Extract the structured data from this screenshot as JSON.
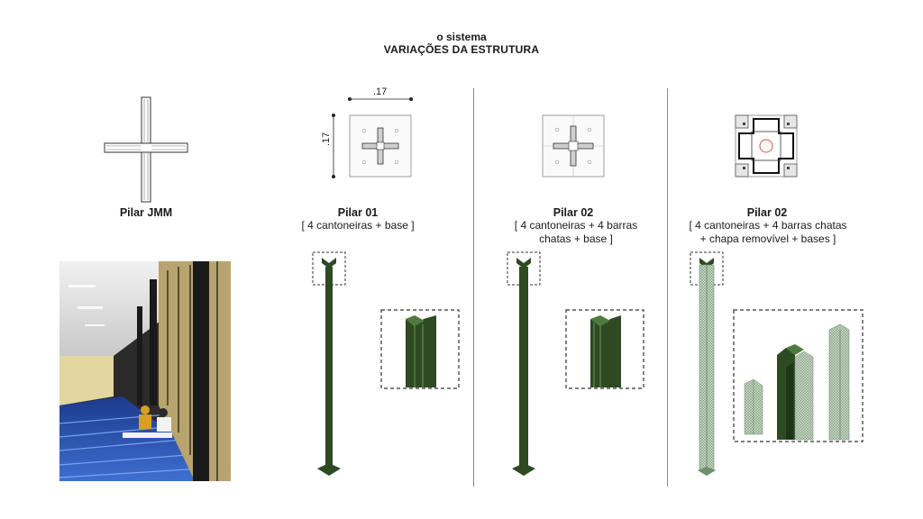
{
  "header": {
    "subtitle": "o sistema",
    "title": "VARIAÇÕES DA ESTRUTURA"
  },
  "columns": [
    {
      "name": "Pilar JMM",
      "description": ""
    },
    {
      "name": "Pilar 01",
      "description": "[ 4 cantoneiras + base ]"
    },
    {
      "name": "Pilar 02",
      "description_lines": [
        "[ 4 cantoneiras +  4 barras",
        "chatas + base ]"
      ]
    },
    {
      "name": "Pilar 02",
      "description_lines": [
        "[ 4 cantoneiras +  4 barras chatas",
        "+ chapa removível + bases ]"
      ]
    }
  ],
  "plan_dimensions": {
    "width": ".17",
    "height": ".17"
  },
  "colors": {
    "steel_green": "#2d4a22",
    "light_green": "#a9bfa8",
    "accent_red": "#d9534f"
  }
}
